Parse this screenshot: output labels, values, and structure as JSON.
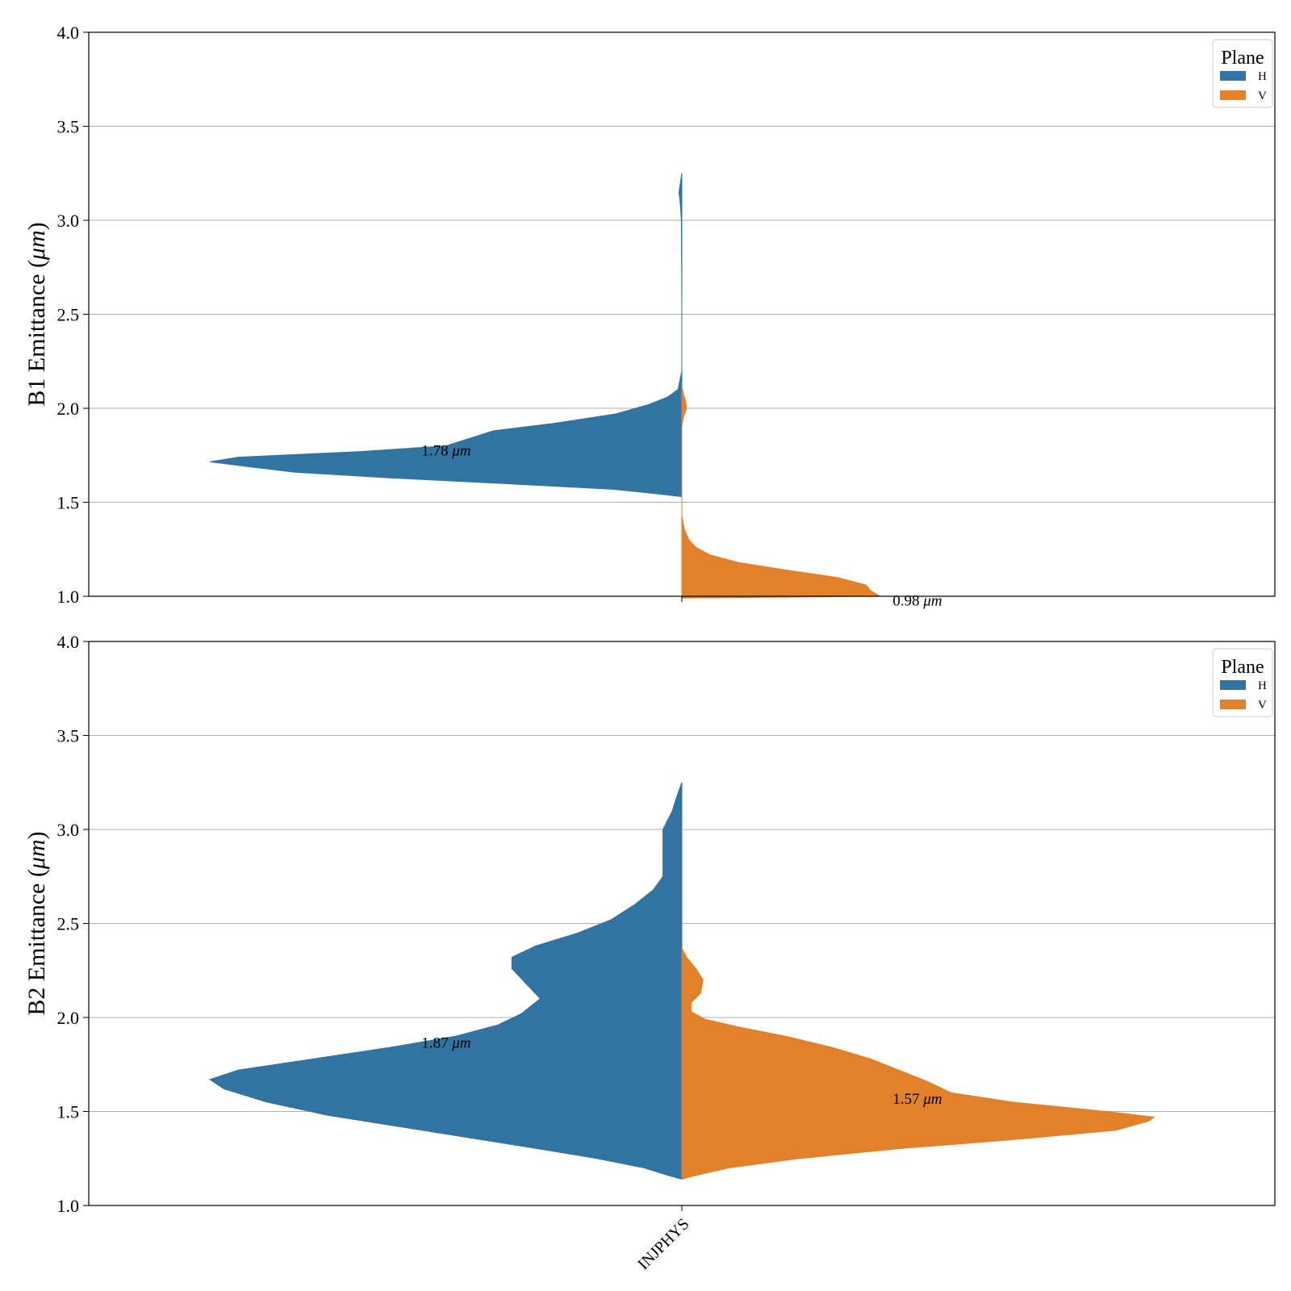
{
  "chart_data": [
    {
      "type": "violin",
      "split": true,
      "ylabel": "B1 Emittance (μm)",
      "ylabel_prefix": "B1 Emittance (",
      "ylabel_unit": "μm",
      "ylabel_suffix": ")",
      "ylim": [
        1.0,
        4.0
      ],
      "yticks": [
        "1.0",
        "1.5",
        "2.0",
        "2.5",
        "3.0",
        "3.5",
        "4.0"
      ],
      "grid": "horizontal",
      "legend": {
        "title": "Plane",
        "position": "top-right",
        "entries": [
          "H",
          "V"
        ]
      },
      "categories": [
        "INJPHYS"
      ],
      "series": [
        {
          "name": "H",
          "color": "#3274a1",
          "median_label": "1.78",
          "median_value": 1.78,
          "density": [
            [
              1.53,
              0.0
            ],
            [
              1.55,
              0.07
            ],
            [
              1.57,
              0.15
            ],
            [
              1.6,
              0.38
            ],
            [
              1.63,
              0.62
            ],
            [
              1.66,
              0.82
            ],
            [
              1.69,
              0.92
            ],
            [
              1.715,
              1.0
            ],
            [
              1.74,
              0.94
            ],
            [
              1.77,
              0.68
            ],
            [
              1.8,
              0.5
            ],
            [
              1.84,
              0.45
            ],
            [
              1.88,
              0.4
            ],
            [
              1.92,
              0.27
            ],
            [
              1.97,
              0.14
            ],
            [
              2.02,
              0.07
            ],
            [
              2.06,
              0.03
            ],
            [
              2.1,
              0.008
            ],
            [
              2.15,
              0.004
            ],
            [
              2.2,
              0.0
            ],
            [
              2.5,
              0.0
            ],
            [
              3.0,
              0.001
            ],
            [
              3.08,
              0.003
            ],
            [
              3.15,
              0.006
            ],
            [
              3.2,
              0.003
            ],
            [
              3.25,
              0.0
            ]
          ]
        },
        {
          "name": "V",
          "color": "#e1812c",
          "median_label": "0.98",
          "median_value": 0.98,
          "density": [
            [
              0.99,
              0.0
            ],
            [
              0.995,
              0.18
            ],
            [
              1.0,
              0.42
            ],
            [
              1.03,
              0.4
            ],
            [
              1.06,
              0.39
            ],
            [
              1.1,
              0.33
            ],
            [
              1.14,
              0.22
            ],
            [
              1.18,
              0.12
            ],
            [
              1.22,
              0.06
            ],
            [
              1.26,
              0.03
            ],
            [
              1.3,
              0.015
            ],
            [
              1.36,
              0.005
            ],
            [
              1.43,
              0.0
            ],
            [
              1.55,
              0.0
            ],
            [
              1.9,
              0.0
            ],
            [
              1.95,
              0.003
            ],
            [
              2.0,
              0.01
            ],
            [
              2.04,
              0.008
            ],
            [
              2.08,
              0.003
            ],
            [
              2.12,
              0.0
            ]
          ]
        }
      ]
    },
    {
      "type": "violin",
      "split": true,
      "ylabel": "B2 Emittance (μm)",
      "ylabel_prefix": "B2 Emittance (",
      "ylabel_unit": "μm",
      "ylabel_suffix": ")",
      "ylim": [
        1.0,
        4.0
      ],
      "yticks": [
        "1.0",
        "1.5",
        "2.0",
        "2.5",
        "3.0",
        "3.5",
        "4.0"
      ],
      "grid": "horizontal",
      "legend": {
        "title": "Plane",
        "position": "top-right",
        "entries": [
          "H",
          "V"
        ]
      },
      "categories": [
        "INJPHYS"
      ],
      "xtick_labels": [
        "INJPHYS"
      ],
      "series": [
        {
          "name": "H",
          "color": "#3274a1",
          "median_label": "1.87",
          "median_value": 1.87,
          "density": [
            [
              1.14,
              0.0
            ],
            [
              1.16,
              0.03
            ],
            [
              1.2,
              0.08
            ],
            [
              1.25,
              0.18
            ],
            [
              1.3,
              0.3
            ],
            [
              1.36,
              0.45
            ],
            [
              1.42,
              0.6
            ],
            [
              1.48,
              0.75
            ],
            [
              1.55,
              0.88
            ],
            [
              1.62,
              0.97
            ],
            [
              1.67,
              1.0
            ],
            [
              1.72,
              0.94
            ],
            [
              1.78,
              0.78
            ],
            [
              1.84,
              0.62
            ],
            [
              1.9,
              0.48
            ],
            [
              1.96,
              0.39
            ],
            [
              2.02,
              0.34
            ],
            [
              2.1,
              0.3
            ],
            [
              2.18,
              0.33
            ],
            [
              2.26,
              0.36
            ],
            [
              2.32,
              0.36
            ],
            [
              2.38,
              0.31
            ],
            [
              2.45,
              0.22
            ],
            [
              2.52,
              0.15
            ],
            [
              2.6,
              0.1
            ],
            [
              2.68,
              0.06
            ],
            [
              2.75,
              0.04
            ],
            [
              2.82,
              0.04
            ],
            [
              2.9,
              0.04
            ],
            [
              3.0,
              0.04
            ],
            [
              3.1,
              0.02
            ],
            [
              3.18,
              0.01
            ],
            [
              3.25,
              0.0
            ]
          ]
        },
        {
          "name": "V",
          "color": "#e1812c",
          "median_label": "1.57",
          "median_value": 1.57,
          "density": [
            [
              1.14,
              0.0
            ],
            [
              1.16,
              0.03
            ],
            [
              1.2,
              0.1
            ],
            [
              1.25,
              0.25
            ],
            [
              1.3,
              0.45
            ],
            [
              1.35,
              0.7
            ],
            [
              1.4,
              0.92
            ],
            [
              1.45,
              0.99
            ],
            [
              1.47,
              1.0
            ],
            [
              1.5,
              0.9
            ],
            [
              1.55,
              0.7
            ],
            [
              1.6,
              0.57
            ],
            [
              1.66,
              0.52
            ],
            [
              1.72,
              0.46
            ],
            [
              1.78,
              0.4
            ],
            [
              1.84,
              0.32
            ],
            [
              1.9,
              0.22
            ],
            [
              1.95,
              0.12
            ],
            [
              1.99,
              0.05
            ],
            [
              2.03,
              0.02
            ],
            [
              2.08,
              0.02
            ],
            [
              2.13,
              0.04
            ],
            [
              2.2,
              0.045
            ],
            [
              2.26,
              0.03
            ],
            [
              2.32,
              0.01
            ],
            [
              2.37,
              0.0
            ]
          ]
        }
      ]
    }
  ]
}
